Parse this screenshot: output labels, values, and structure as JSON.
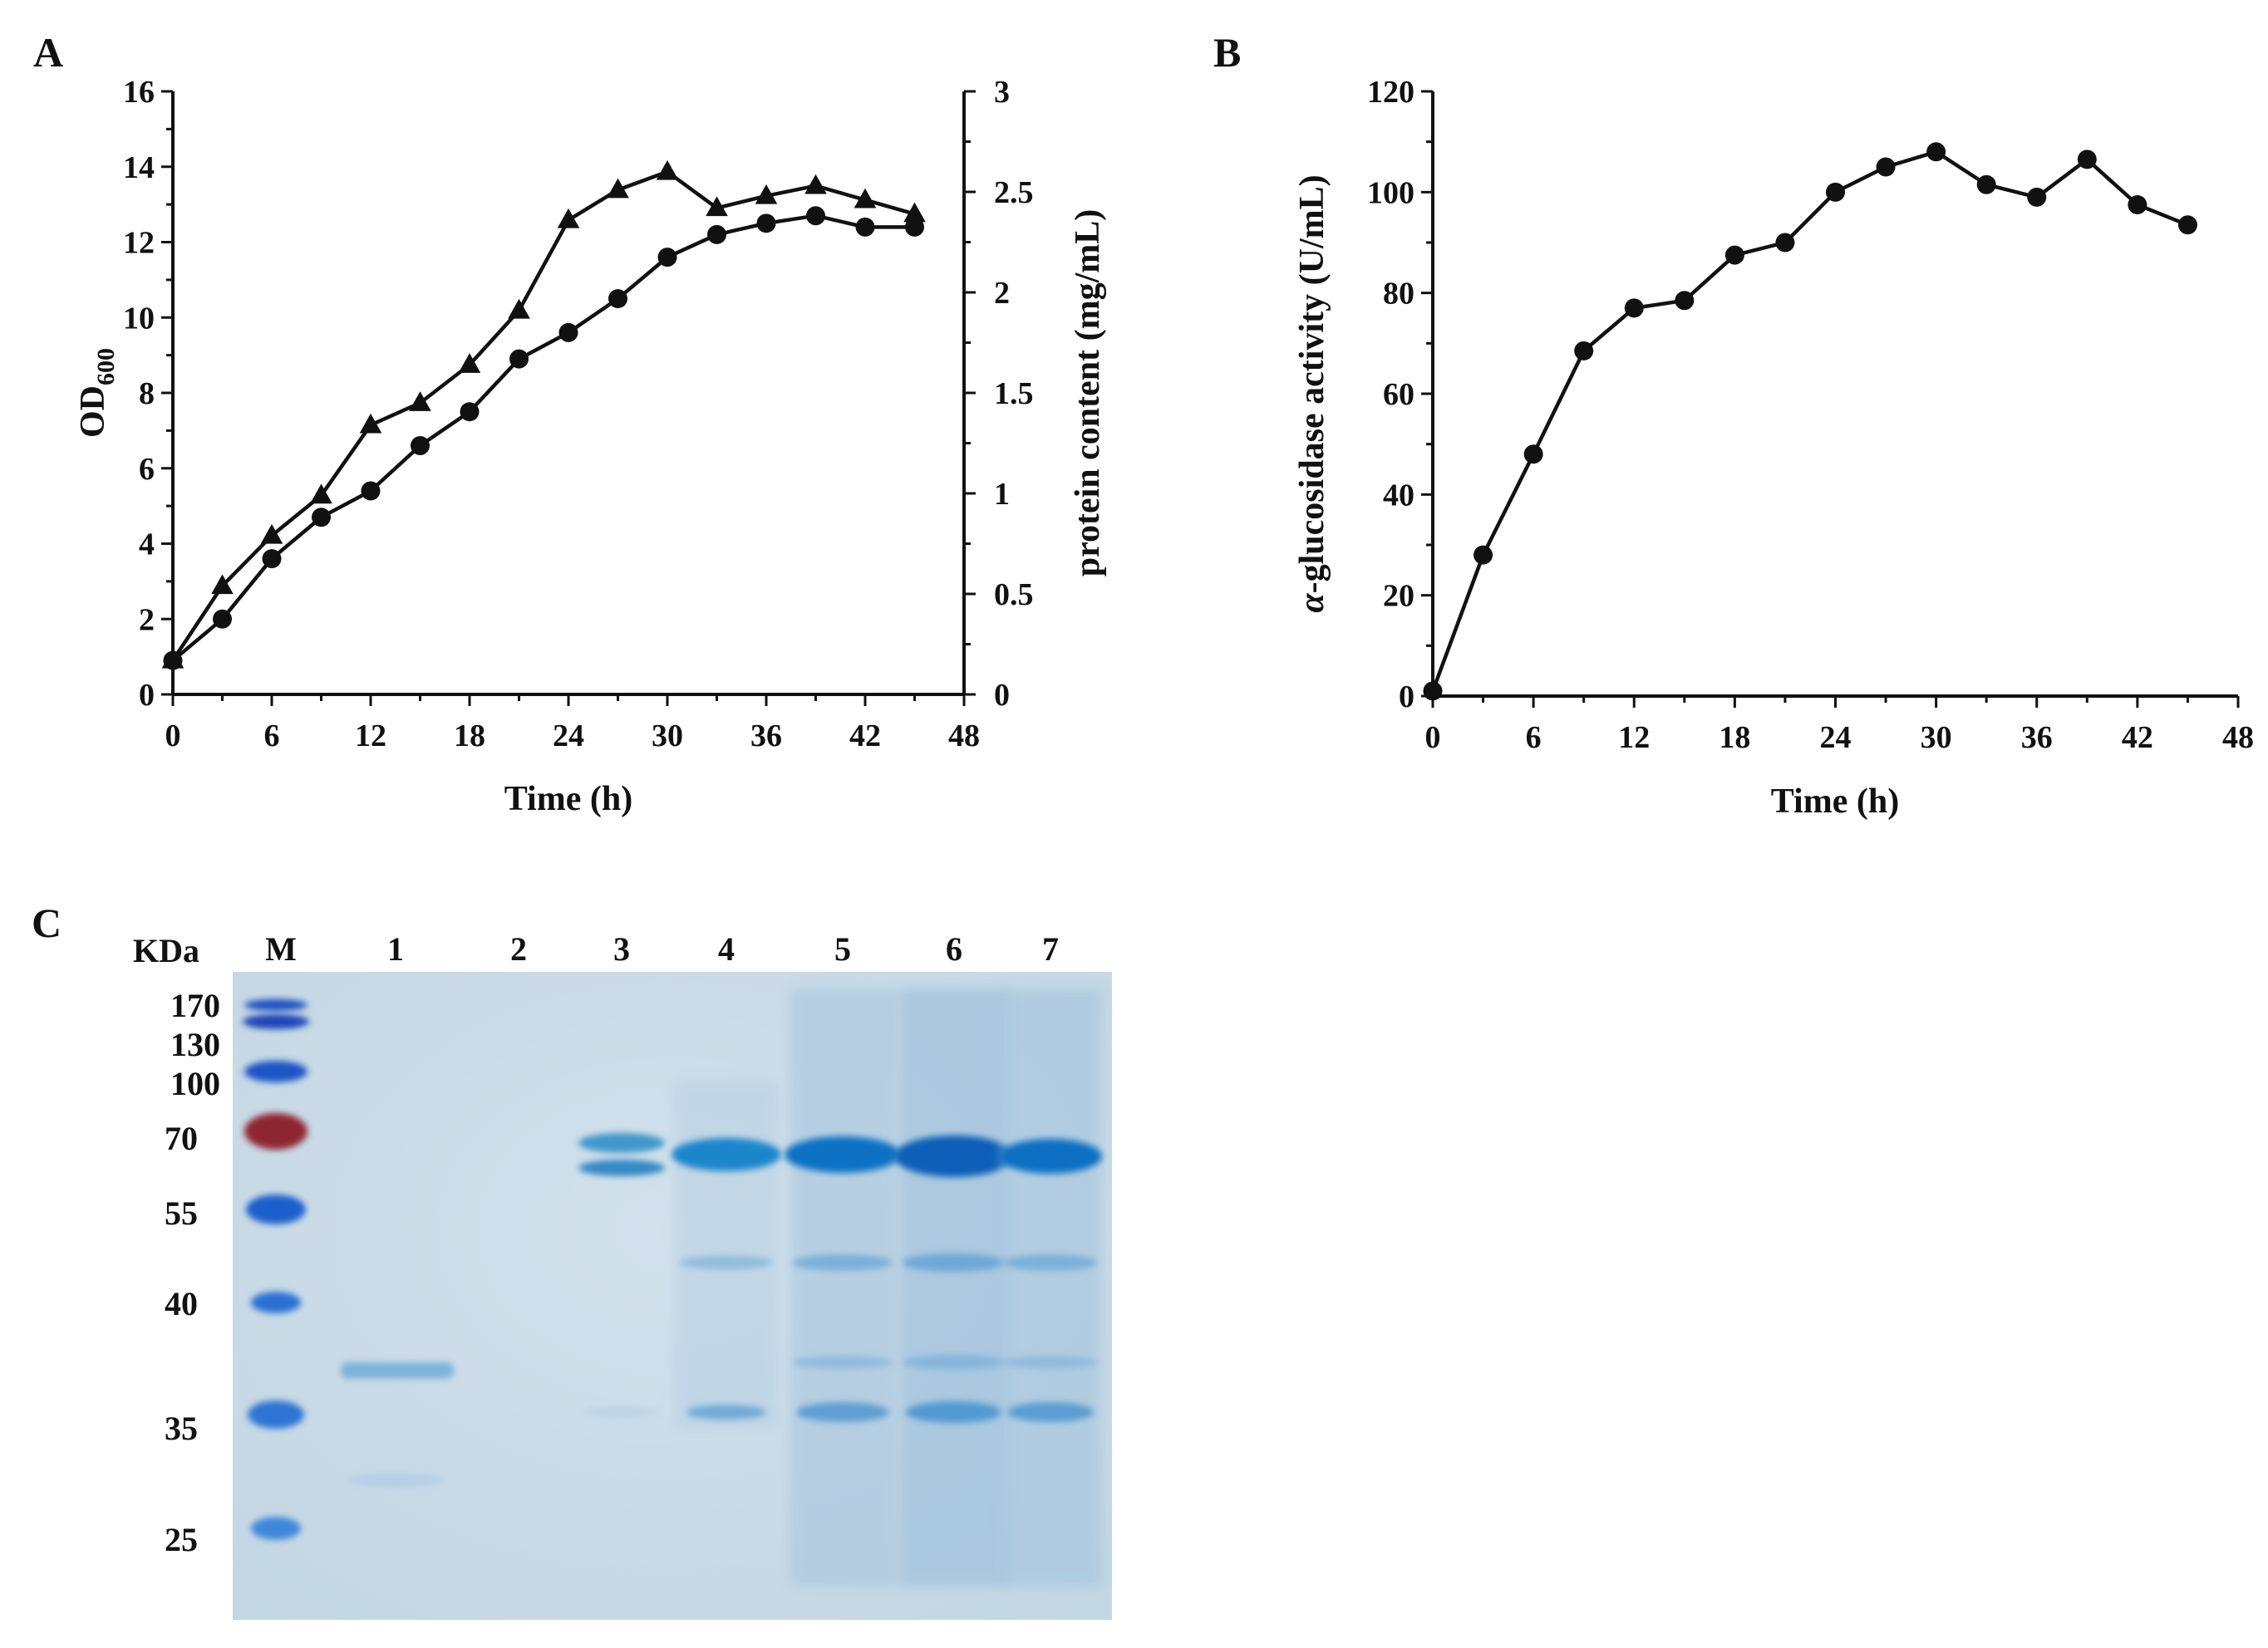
{
  "panels": {
    "A": "A",
    "B": "B",
    "C": "C"
  },
  "chart_data": [
    {
      "panel": "A",
      "type": "line",
      "xlabel": "Time (h)",
      "ylabel_main": "OD",
      "ylabel_sub": "600",
      "y2label": "protein content (mg/mL)",
      "xlim": [
        0,
        48
      ],
      "ylim": [
        0,
        16
      ],
      "y2lim": [
        0,
        3
      ],
      "xticks": [
        0,
        6,
        12,
        18,
        24,
        30,
        36,
        42,
        48
      ],
      "yticks": [
        0,
        2,
        4,
        6,
        8,
        10,
        12,
        14,
        16
      ],
      "y2ticks": [
        "0",
        "0.5",
        "1",
        "1.5",
        "2",
        "2.5",
        "3"
      ],
      "series": [
        {
          "name": "OD600",
          "marker": "circle",
          "axis": "left",
          "x": [
            0,
            3,
            6,
            9,
            12,
            15,
            18,
            21,
            24,
            27,
            30,
            33,
            36,
            39,
            42,
            45
          ],
          "values": [
            0.9,
            2.0,
            3.6,
            4.7,
            5.4,
            6.6,
            7.5,
            8.9,
            9.6,
            10.5,
            11.6,
            12.2,
            12.5,
            12.7,
            12.4,
            12.4
          ]
        },
        {
          "name": "protein content",
          "marker": "triangle",
          "axis": "right",
          "x": [
            0,
            3,
            6,
            9,
            12,
            15,
            18,
            21,
            24,
            27,
            30,
            33,
            36,
            39,
            42,
            45
          ],
          "values": [
            0.17,
            0.54,
            0.79,
            0.99,
            1.34,
            1.45,
            1.64,
            1.91,
            2.36,
            2.51,
            2.6,
            2.42,
            2.48,
            2.53,
            2.46,
            2.39
          ]
        }
      ]
    },
    {
      "panel": "B",
      "type": "line",
      "xlabel": "Time (h)",
      "ylabel_italic": "α",
      "ylabel_rest": "-glucosidase activity (U/mL)",
      "xlim": [
        0,
        48
      ],
      "ylim": [
        0,
        120
      ],
      "xticks": [
        0,
        6,
        12,
        18,
        24,
        30,
        36,
        42,
        48
      ],
      "yticks": [
        0,
        20,
        40,
        60,
        80,
        100,
        120
      ],
      "series": [
        {
          "name": "α-glucosidase activity",
          "marker": "circle",
          "x": [
            0,
            3,
            6,
            9,
            12,
            15,
            18,
            21,
            24,
            27,
            30,
            33,
            36,
            39,
            42,
            45
          ],
          "values": [
            1,
            28,
            48,
            68.5,
            77,
            78.5,
            87.5,
            90,
            100,
            105,
            108,
            101.5,
            99,
            106.5,
            97.5,
            93.5
          ]
        }
      ]
    }
  ],
  "gel": {
    "unit_label": "KDa",
    "lane_labels": [
      "M",
      "1",
      "2",
      "3",
      "4",
      "5",
      "6",
      "7"
    ],
    "marker_sizes": [
      "170",
      "130",
      "100",
      "70",
      "55",
      "40",
      "35",
      "25"
    ]
  }
}
